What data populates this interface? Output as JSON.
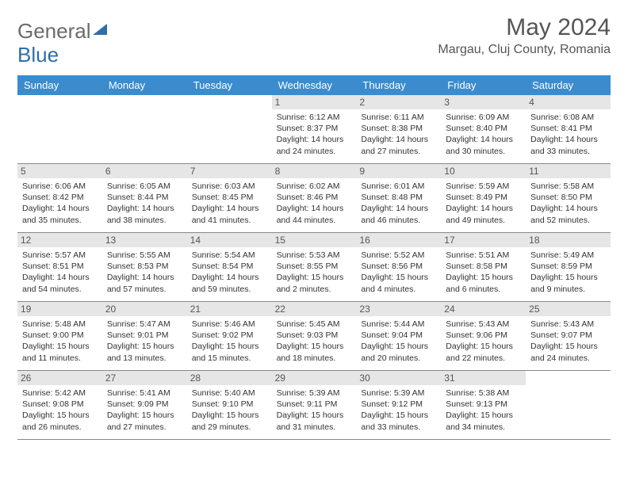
{
  "logo": {
    "part1": "General",
    "part2": "Blue"
  },
  "title": "May 2024",
  "location": "Margau, Cluj County, Romania",
  "day_headers": [
    "Sunday",
    "Monday",
    "Tuesday",
    "Wednesday",
    "Thursday",
    "Friday",
    "Saturday"
  ],
  "colors": {
    "header_bg": "#3a8cce",
    "daynum_bg": "#e6e6e6",
    "text": "#333333",
    "logo_gray": "#6b6b6b",
    "logo_blue": "#2f6fa8"
  },
  "weeks": [
    [
      {
        "n": "",
        "sr": "",
        "ss": "",
        "dl1": "",
        "dl2": "",
        "empty": true
      },
      {
        "n": "",
        "sr": "",
        "ss": "",
        "dl1": "",
        "dl2": "",
        "empty": true
      },
      {
        "n": "",
        "sr": "",
        "ss": "",
        "dl1": "",
        "dl2": "",
        "empty": true
      },
      {
        "n": "1",
        "sr": "Sunrise: 6:12 AM",
        "ss": "Sunset: 8:37 PM",
        "dl1": "Daylight: 14 hours",
        "dl2": "and 24 minutes."
      },
      {
        "n": "2",
        "sr": "Sunrise: 6:11 AM",
        "ss": "Sunset: 8:38 PM",
        "dl1": "Daylight: 14 hours",
        "dl2": "and 27 minutes."
      },
      {
        "n": "3",
        "sr": "Sunrise: 6:09 AM",
        "ss": "Sunset: 8:40 PM",
        "dl1": "Daylight: 14 hours",
        "dl2": "and 30 minutes."
      },
      {
        "n": "4",
        "sr": "Sunrise: 6:08 AM",
        "ss": "Sunset: 8:41 PM",
        "dl1": "Daylight: 14 hours",
        "dl2": "and 33 minutes."
      }
    ],
    [
      {
        "n": "5",
        "sr": "Sunrise: 6:06 AM",
        "ss": "Sunset: 8:42 PM",
        "dl1": "Daylight: 14 hours",
        "dl2": "and 35 minutes."
      },
      {
        "n": "6",
        "sr": "Sunrise: 6:05 AM",
        "ss": "Sunset: 8:44 PM",
        "dl1": "Daylight: 14 hours",
        "dl2": "and 38 minutes."
      },
      {
        "n": "7",
        "sr": "Sunrise: 6:03 AM",
        "ss": "Sunset: 8:45 PM",
        "dl1": "Daylight: 14 hours",
        "dl2": "and 41 minutes."
      },
      {
        "n": "8",
        "sr": "Sunrise: 6:02 AM",
        "ss": "Sunset: 8:46 PM",
        "dl1": "Daylight: 14 hours",
        "dl2": "and 44 minutes."
      },
      {
        "n": "9",
        "sr": "Sunrise: 6:01 AM",
        "ss": "Sunset: 8:48 PM",
        "dl1": "Daylight: 14 hours",
        "dl2": "and 46 minutes."
      },
      {
        "n": "10",
        "sr": "Sunrise: 5:59 AM",
        "ss": "Sunset: 8:49 PM",
        "dl1": "Daylight: 14 hours",
        "dl2": "and 49 minutes."
      },
      {
        "n": "11",
        "sr": "Sunrise: 5:58 AM",
        "ss": "Sunset: 8:50 PM",
        "dl1": "Daylight: 14 hours",
        "dl2": "and 52 minutes."
      }
    ],
    [
      {
        "n": "12",
        "sr": "Sunrise: 5:57 AM",
        "ss": "Sunset: 8:51 PM",
        "dl1": "Daylight: 14 hours",
        "dl2": "and 54 minutes."
      },
      {
        "n": "13",
        "sr": "Sunrise: 5:55 AM",
        "ss": "Sunset: 8:53 PM",
        "dl1": "Daylight: 14 hours",
        "dl2": "and 57 minutes."
      },
      {
        "n": "14",
        "sr": "Sunrise: 5:54 AM",
        "ss": "Sunset: 8:54 PM",
        "dl1": "Daylight: 14 hours",
        "dl2": "and 59 minutes."
      },
      {
        "n": "15",
        "sr": "Sunrise: 5:53 AM",
        "ss": "Sunset: 8:55 PM",
        "dl1": "Daylight: 15 hours",
        "dl2": "and 2 minutes."
      },
      {
        "n": "16",
        "sr": "Sunrise: 5:52 AM",
        "ss": "Sunset: 8:56 PM",
        "dl1": "Daylight: 15 hours",
        "dl2": "and 4 minutes."
      },
      {
        "n": "17",
        "sr": "Sunrise: 5:51 AM",
        "ss": "Sunset: 8:58 PM",
        "dl1": "Daylight: 15 hours",
        "dl2": "and 6 minutes."
      },
      {
        "n": "18",
        "sr": "Sunrise: 5:49 AM",
        "ss": "Sunset: 8:59 PM",
        "dl1": "Daylight: 15 hours",
        "dl2": "and 9 minutes."
      }
    ],
    [
      {
        "n": "19",
        "sr": "Sunrise: 5:48 AM",
        "ss": "Sunset: 9:00 PM",
        "dl1": "Daylight: 15 hours",
        "dl2": "and 11 minutes."
      },
      {
        "n": "20",
        "sr": "Sunrise: 5:47 AM",
        "ss": "Sunset: 9:01 PM",
        "dl1": "Daylight: 15 hours",
        "dl2": "and 13 minutes."
      },
      {
        "n": "21",
        "sr": "Sunrise: 5:46 AM",
        "ss": "Sunset: 9:02 PM",
        "dl1": "Daylight: 15 hours",
        "dl2": "and 15 minutes."
      },
      {
        "n": "22",
        "sr": "Sunrise: 5:45 AM",
        "ss": "Sunset: 9:03 PM",
        "dl1": "Daylight: 15 hours",
        "dl2": "and 18 minutes."
      },
      {
        "n": "23",
        "sr": "Sunrise: 5:44 AM",
        "ss": "Sunset: 9:04 PM",
        "dl1": "Daylight: 15 hours",
        "dl2": "and 20 minutes."
      },
      {
        "n": "24",
        "sr": "Sunrise: 5:43 AM",
        "ss": "Sunset: 9:06 PM",
        "dl1": "Daylight: 15 hours",
        "dl2": "and 22 minutes."
      },
      {
        "n": "25",
        "sr": "Sunrise: 5:43 AM",
        "ss": "Sunset: 9:07 PM",
        "dl1": "Daylight: 15 hours",
        "dl2": "and 24 minutes."
      }
    ],
    [
      {
        "n": "26",
        "sr": "Sunrise: 5:42 AM",
        "ss": "Sunset: 9:08 PM",
        "dl1": "Daylight: 15 hours",
        "dl2": "and 26 minutes."
      },
      {
        "n": "27",
        "sr": "Sunrise: 5:41 AM",
        "ss": "Sunset: 9:09 PM",
        "dl1": "Daylight: 15 hours",
        "dl2": "and 27 minutes."
      },
      {
        "n": "28",
        "sr": "Sunrise: 5:40 AM",
        "ss": "Sunset: 9:10 PM",
        "dl1": "Daylight: 15 hours",
        "dl2": "and 29 minutes."
      },
      {
        "n": "29",
        "sr": "Sunrise: 5:39 AM",
        "ss": "Sunset: 9:11 PM",
        "dl1": "Daylight: 15 hours",
        "dl2": "and 31 minutes."
      },
      {
        "n": "30",
        "sr": "Sunrise: 5:39 AM",
        "ss": "Sunset: 9:12 PM",
        "dl1": "Daylight: 15 hours",
        "dl2": "and 33 minutes."
      },
      {
        "n": "31",
        "sr": "Sunrise: 5:38 AM",
        "ss": "Sunset: 9:13 PM",
        "dl1": "Daylight: 15 hours",
        "dl2": "and 34 minutes."
      },
      {
        "n": "",
        "sr": "",
        "ss": "",
        "dl1": "",
        "dl2": "",
        "empty": true
      }
    ]
  ]
}
